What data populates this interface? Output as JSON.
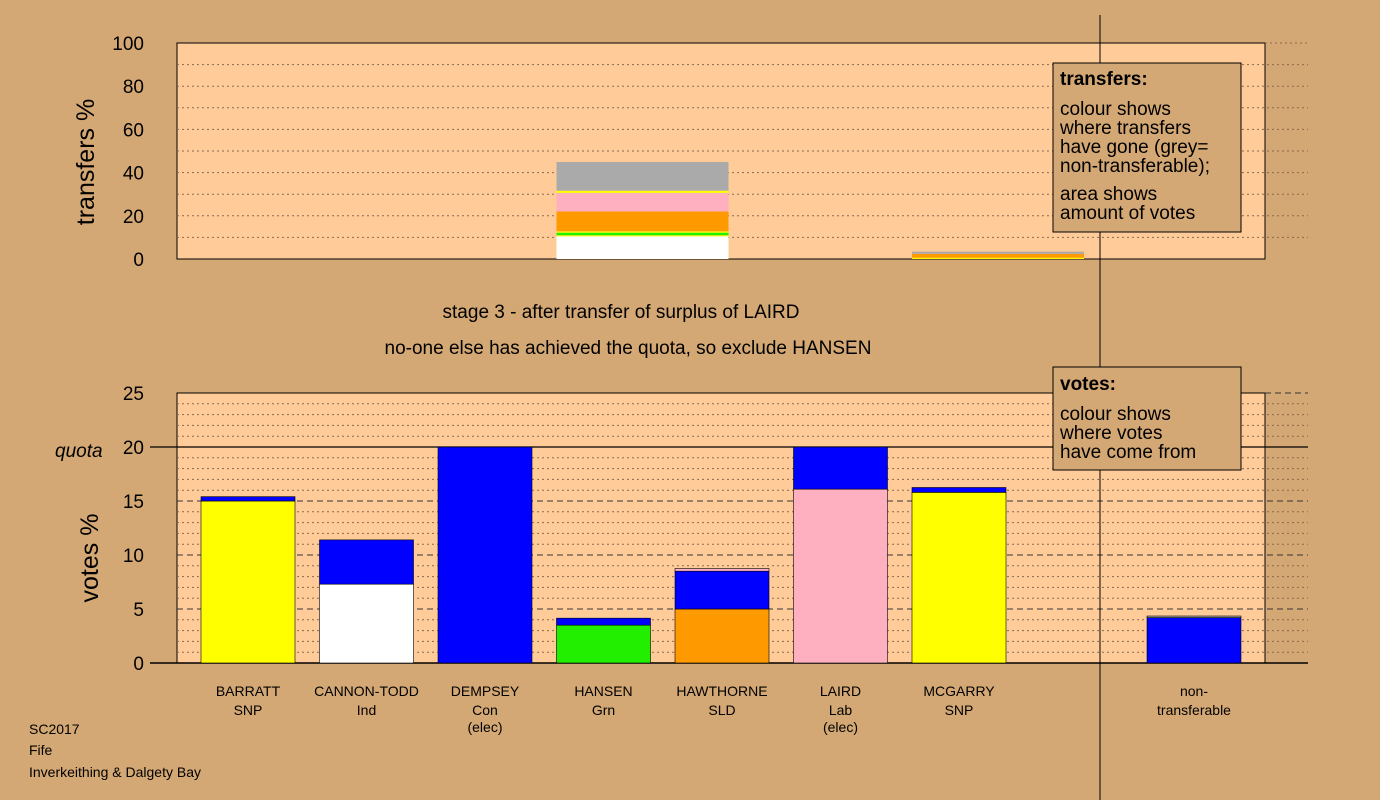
{
  "colors": {
    "background": "#d4a874",
    "plot_area": "#ffcc99",
    "non_transferable": "#aaaaaa",
    "Lab": "#ffb0c0",
    "SLD": "#ff9900",
    "Grn": "#22ee00",
    "SNP": "#ffff00",
    "Ind": "#ffffff",
    "Con": "#0000ff"
  },
  "stage_text": {
    "line1": "stage 3 - after transfer of surplus of LAIRD",
    "line2": "no-one else has achieved the quota, so exclude HANSEN"
  },
  "legends": {
    "transfers": {
      "title": "transfers:",
      "lines": [
        "colour shows",
        "where transfers",
        "have gone (grey=",
        "non-transferable);",
        "area shows",
        "amount of votes"
      ]
    },
    "votes": {
      "title": "votes:",
      "lines": [
        "colour shows",
        "where votes",
        "have come from"
      ]
    }
  },
  "footer": {
    "line1": "SC2017",
    "line2": "Fife",
    "line3": "Inverkeithing & Dalgety Bay"
  },
  "chart_data": [
    {
      "type": "bar",
      "ylabel": "transfers %",
      "ylim": [
        0,
        100
      ],
      "yticks": [
        "0",
        "20",
        "40",
        "60",
        "80",
        "100"
      ],
      "bars": [
        {
          "slot": 3,
          "segments": [
            {
              "party": "Ind",
              "value": 10.5
            },
            {
              "party": "SNP",
              "value": 0.5
            },
            {
              "party": "Grn",
              "value": 1.2
            },
            {
              "party": "SNP",
              "value": 0.6
            },
            {
              "party": "SLD",
              "value": 9.2
            },
            {
              "party": "Lab",
              "value": 8.6
            },
            {
              "party": "SNP",
              "value": 1.0
            },
            {
              "party": "non_transferable",
              "value": 13.3
            }
          ]
        },
        {
          "slot": 6,
          "segments": [
            {
              "party": "SNP",
              "value": 0.6
            },
            {
              "party": "SLD",
              "value": 1.8
            },
            {
              "party": "non_transferable",
              "value": 1.0
            }
          ]
        }
      ]
    },
    {
      "type": "bar",
      "ylabel": "votes %",
      "ylim": [
        0,
        25
      ],
      "yticks": [
        "0",
        "5",
        "10",
        "15",
        "20",
        "25"
      ],
      "quota": 20,
      "quota_label": "quota",
      "bars": [
        {
          "name": "BARRATT",
          "party": "SNP",
          "extra": "",
          "segments": [
            {
              "party": "SNP",
              "value": 15.0
            },
            {
              "party": "Con",
              "value": 0.4
            }
          ]
        },
        {
          "name": "CANNON-TODD",
          "party": "Ind",
          "extra": "",
          "segments": [
            {
              "party": "Ind",
              "value": 7.3
            },
            {
              "party": "Con",
              "value": 4.1
            }
          ]
        },
        {
          "name": "DEMPSEY",
          "party": "Con",
          "extra": "(elec)",
          "segments": [
            {
              "party": "Con",
              "value": 20.0
            }
          ]
        },
        {
          "name": "HANSEN",
          "party": "Grn",
          "extra": "",
          "segments": [
            {
              "party": "Grn",
              "value": 3.5
            },
            {
              "party": "Con",
              "value": 0.65
            }
          ]
        },
        {
          "name": "HAWTHORNE",
          "party": "SLD",
          "extra": "",
          "segments": [
            {
              "party": "SLD",
              "value": 5.0
            },
            {
              "party": "Con",
              "value": 3.5
            },
            {
              "party": "Lab",
              "value": 0.25
            }
          ]
        },
        {
          "name": "LAIRD",
          "party": "Lab",
          "extra": "(elec)",
          "segments": [
            {
              "party": "Lab",
              "value": 16.1
            },
            {
              "party": "Con",
              "value": 3.9
            }
          ]
        },
        {
          "name": "MCGARRY",
          "party": "SNP",
          "extra": "",
          "segments": [
            {
              "party": "SNP",
              "value": 15.8
            },
            {
              "party": "Con",
              "value": 0.45
            }
          ]
        },
        {
          "name": "non-",
          "party": "transferable",
          "extra": "",
          "segments": [
            {
              "party": "Con",
              "value": 4.2
            },
            {
              "party": "non_transferable",
              "value": 0.15
            }
          ]
        }
      ]
    }
  ]
}
